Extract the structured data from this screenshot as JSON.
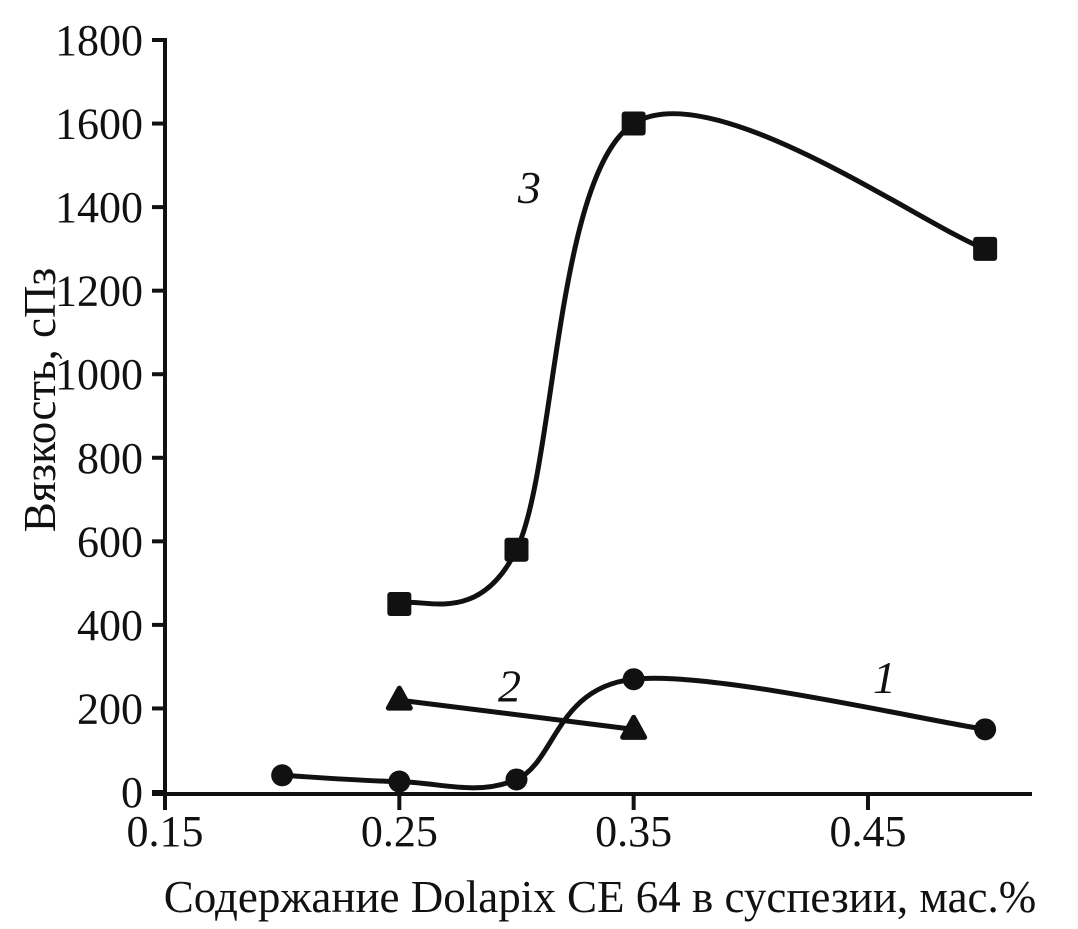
{
  "figure": {
    "background": "#ffffff",
    "ink_color": "#111111"
  },
  "chart_data": {
    "type": "line",
    "title": "",
    "xlabel": "Содержание Dolapix CE 64 в суспезии, мас.%",
    "ylabel": "Вязкость, сПз",
    "xlim": [
      0.15,
      0.52
    ],
    "ylim": [
      0,
      1800
    ],
    "x_ticks": [
      0.15,
      0.25,
      0.35,
      0.45
    ],
    "x_tick_labels": [
      "0.15",
      "0.25",
      "0.35",
      "0.45"
    ],
    "y_ticks": [
      0,
      200,
      400,
      600,
      800,
      1000,
      1200,
      1400,
      1600,
      1800
    ],
    "y_tick_labels": [
      "0",
      "200",
      "400",
      "600",
      "800",
      "1000",
      "1200",
      "1400",
      "1600",
      "1800"
    ],
    "grid": false,
    "legend": "inline-curve-numbers",
    "line_color": "#111111",
    "series": [
      {
        "name": "1",
        "marker": "circle",
        "x": [
          0.2,
          0.25,
          0.3,
          0.35,
          0.5
        ],
        "y": [
          40,
          25,
          30,
          270,
          150
        ],
        "label": "1",
        "label_pos": {
          "x": 0.457,
          "y": 275
        }
      },
      {
        "name": "2",
        "marker": "triangle",
        "x": [
          0.25,
          0.35
        ],
        "y": [
          220,
          150
        ],
        "label": "2",
        "label_pos": {
          "x": 0.297,
          "y": 255
        }
      },
      {
        "name": "3",
        "marker": "square",
        "x": [
          0.25,
          0.3,
          0.35,
          0.5
        ],
        "y": [
          450,
          580,
          1600,
          1300
        ],
        "label": "3",
        "label_pos": {
          "x": 0.3055,
          "y": 1448
        }
      }
    ]
  }
}
